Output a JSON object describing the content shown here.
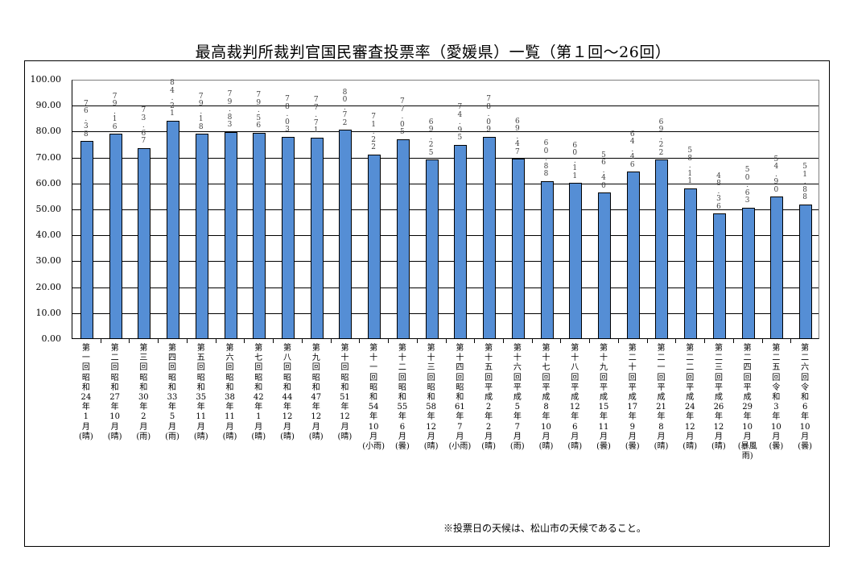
{
  "title": "最高裁判所裁判官国民審査投票率（愛媛県）一覧（第１回～26回）",
  "footnote": "※投票日の天候は、松山市の天候であること。",
  "colors": {
    "bar": "#558ed5",
    "grid": "#000000",
    "label": "#404040"
  },
  "chart_data": {
    "type": "bar",
    "title": "最高裁判所裁判官国民審査投票率（愛媛県）一覧（第１回～26回）",
    "xlabel": "",
    "ylabel": "",
    "ylim": [
      0,
      100
    ],
    "yticks": [
      "0.00",
      "10.00",
      "20.00",
      "30.00",
      "40.00",
      "50.00",
      "60.00",
      "70.00",
      "80.00",
      "90.00",
      "100.00"
    ],
    "grid": true,
    "legend": "none",
    "categories": [
      "第一回昭和24年1月(晴)",
      "第二回昭和27年10月(晴)",
      "第三回昭和30年2月(雨)",
      "第四回昭和33年5月(雨)",
      "第五回昭和35年11月(晴)",
      "第六回昭和38年11月(晴)",
      "第七回昭和42年1月(晴)",
      "第八回昭和44年12月(晴)",
      "第九回昭和47年12月(晴)",
      "第十回昭和51年12月(晴)",
      "第十一回昭和54年10月(小雨)",
      "第十二回昭和55年6月(曇)",
      "第十三回昭和58年12月(晴)",
      "第十四回昭和61年7月(小雨)",
      "第十五回平成2年2月(晴)",
      "第十六回平成5年7月(雨)",
      "第十七回平成8年10月(晴)",
      "第十八回平成12年6月(晴)",
      "第十九回平成15年11月(曇)",
      "第二十回平成17年9月(曇)",
      "第二一回平成21年8月(晴)",
      "第二二回平成24年12月(晴)",
      "第二三回平成26年12月(晴)",
      "第二四回平成29年10月(暴風雨)",
      "第二五回令和3年10月(曇)",
      "第二六回令和6年10月(曇)"
    ],
    "category_lines": [
      [
        "第",
        "一",
        "回",
        "昭",
        "和",
        "24",
        "年",
        "1",
        "月",
        "(晴)"
      ],
      [
        "第",
        "二",
        "回",
        "昭",
        "和",
        "27",
        "年",
        "10",
        "月",
        "(晴)"
      ],
      [
        "第",
        "三",
        "回",
        "昭",
        "和",
        "30",
        "年",
        "2",
        "月",
        "(雨)"
      ],
      [
        "第",
        "四",
        "回",
        "昭",
        "和",
        "33",
        "年",
        "5",
        "月",
        "(雨)"
      ],
      [
        "第",
        "五",
        "回",
        "昭",
        "和",
        "35",
        "年",
        "11",
        "月",
        "(晴)"
      ],
      [
        "第",
        "六",
        "回",
        "昭",
        "和",
        "38",
        "年",
        "11",
        "月",
        "(晴)"
      ],
      [
        "第",
        "七",
        "回",
        "昭",
        "和",
        "42",
        "年",
        "1",
        "月",
        "(晴)"
      ],
      [
        "第",
        "八",
        "回",
        "昭",
        "和",
        "44",
        "年",
        "12",
        "月",
        "(晴)"
      ],
      [
        "第",
        "九",
        "回",
        "昭",
        "和",
        "47",
        "年",
        "12",
        "月",
        "(晴)"
      ],
      [
        "第",
        "十",
        "回",
        "昭",
        "和",
        "51",
        "年",
        "12",
        "月",
        "(晴)"
      ],
      [
        "第",
        "十",
        "一",
        "回",
        "昭",
        "和",
        "54",
        "年",
        "10",
        "月",
        "(小雨)"
      ],
      [
        "第",
        "十",
        "二",
        "回",
        "昭",
        "和",
        "55",
        "年",
        "6",
        "月",
        "(曇)"
      ],
      [
        "第",
        "十",
        "三",
        "回",
        "昭",
        "和",
        "58",
        "年",
        "12",
        "月",
        "(晴)"
      ],
      [
        "第",
        "十",
        "四",
        "回",
        "昭",
        "和",
        "61",
        "年",
        "7",
        "月",
        "(小雨)"
      ],
      [
        "第",
        "十",
        "五",
        "回",
        "平",
        "成",
        "2",
        "年",
        "2",
        "月",
        "(晴)"
      ],
      [
        "第",
        "十",
        "六",
        "回",
        "平",
        "成",
        "5",
        "年",
        "7",
        "月",
        "(雨)"
      ],
      [
        "第",
        "十",
        "七",
        "回",
        "平",
        "成",
        "8",
        "年",
        "10",
        "月",
        "(晴)"
      ],
      [
        "第",
        "十",
        "八",
        "回",
        "平",
        "成",
        "12",
        "年",
        "6",
        "月",
        "(晴)"
      ],
      [
        "第",
        "十",
        "九",
        "回",
        "平",
        "成",
        "15",
        "年",
        "11",
        "月",
        "(曇)"
      ],
      [
        "第",
        "二",
        "十",
        "回",
        "平",
        "成",
        "17",
        "年",
        "9",
        "月",
        "(曇)"
      ],
      [
        "第",
        "二",
        "一",
        "回",
        "平",
        "成",
        "21",
        "年",
        "8",
        "月",
        "(晴)"
      ],
      [
        "第",
        "二",
        "二",
        "回",
        "平",
        "成",
        "24",
        "年",
        "12",
        "月",
        "(晴)"
      ],
      [
        "第",
        "二",
        "三",
        "回",
        "平",
        "成",
        "26",
        "年",
        "12",
        "月",
        "(晴)"
      ],
      [
        "第",
        "二",
        "四",
        "回",
        "平",
        "成",
        "29",
        "年",
        "10",
        "月",
        "(暴風",
        "雨)"
      ],
      [
        "第",
        "二",
        "五",
        "回",
        "令",
        "和",
        "3",
        "年",
        "10",
        "月",
        "(曇)"
      ],
      [
        "第",
        "二",
        "六",
        "回",
        "令",
        "和",
        "6",
        "年",
        "10",
        "月",
        "(曇)"
      ]
    ],
    "values": [
      76.38,
      79.16,
      73.67,
      84.21,
      79.18,
      79.83,
      79.56,
      78.03,
      77.71,
      80.72,
      71.22,
      77.05,
      69.25,
      74.95,
      78.09,
      69.47,
      60.88,
      60.11,
      56.4,
      64.46,
      69.22,
      58.11,
      48.36,
      50.63,
      54.9,
      51.88
    ],
    "value_labels": [
      "76.38",
      "79.16",
      "73.67",
      "84.21",
      "79.18",
      "79.83",
      "79.56",
      "78.03",
      "77.71",
      "80.72",
      "71.22",
      "77.05",
      "69.25",
      "74.95",
      "78.09",
      "69.47",
      "60.88",
      "60.11",
      "56.40",
      "64.46",
      "69.22",
      "58.11",
      "48.36",
      "50.63",
      "54.90",
      "51.88"
    ]
  }
}
